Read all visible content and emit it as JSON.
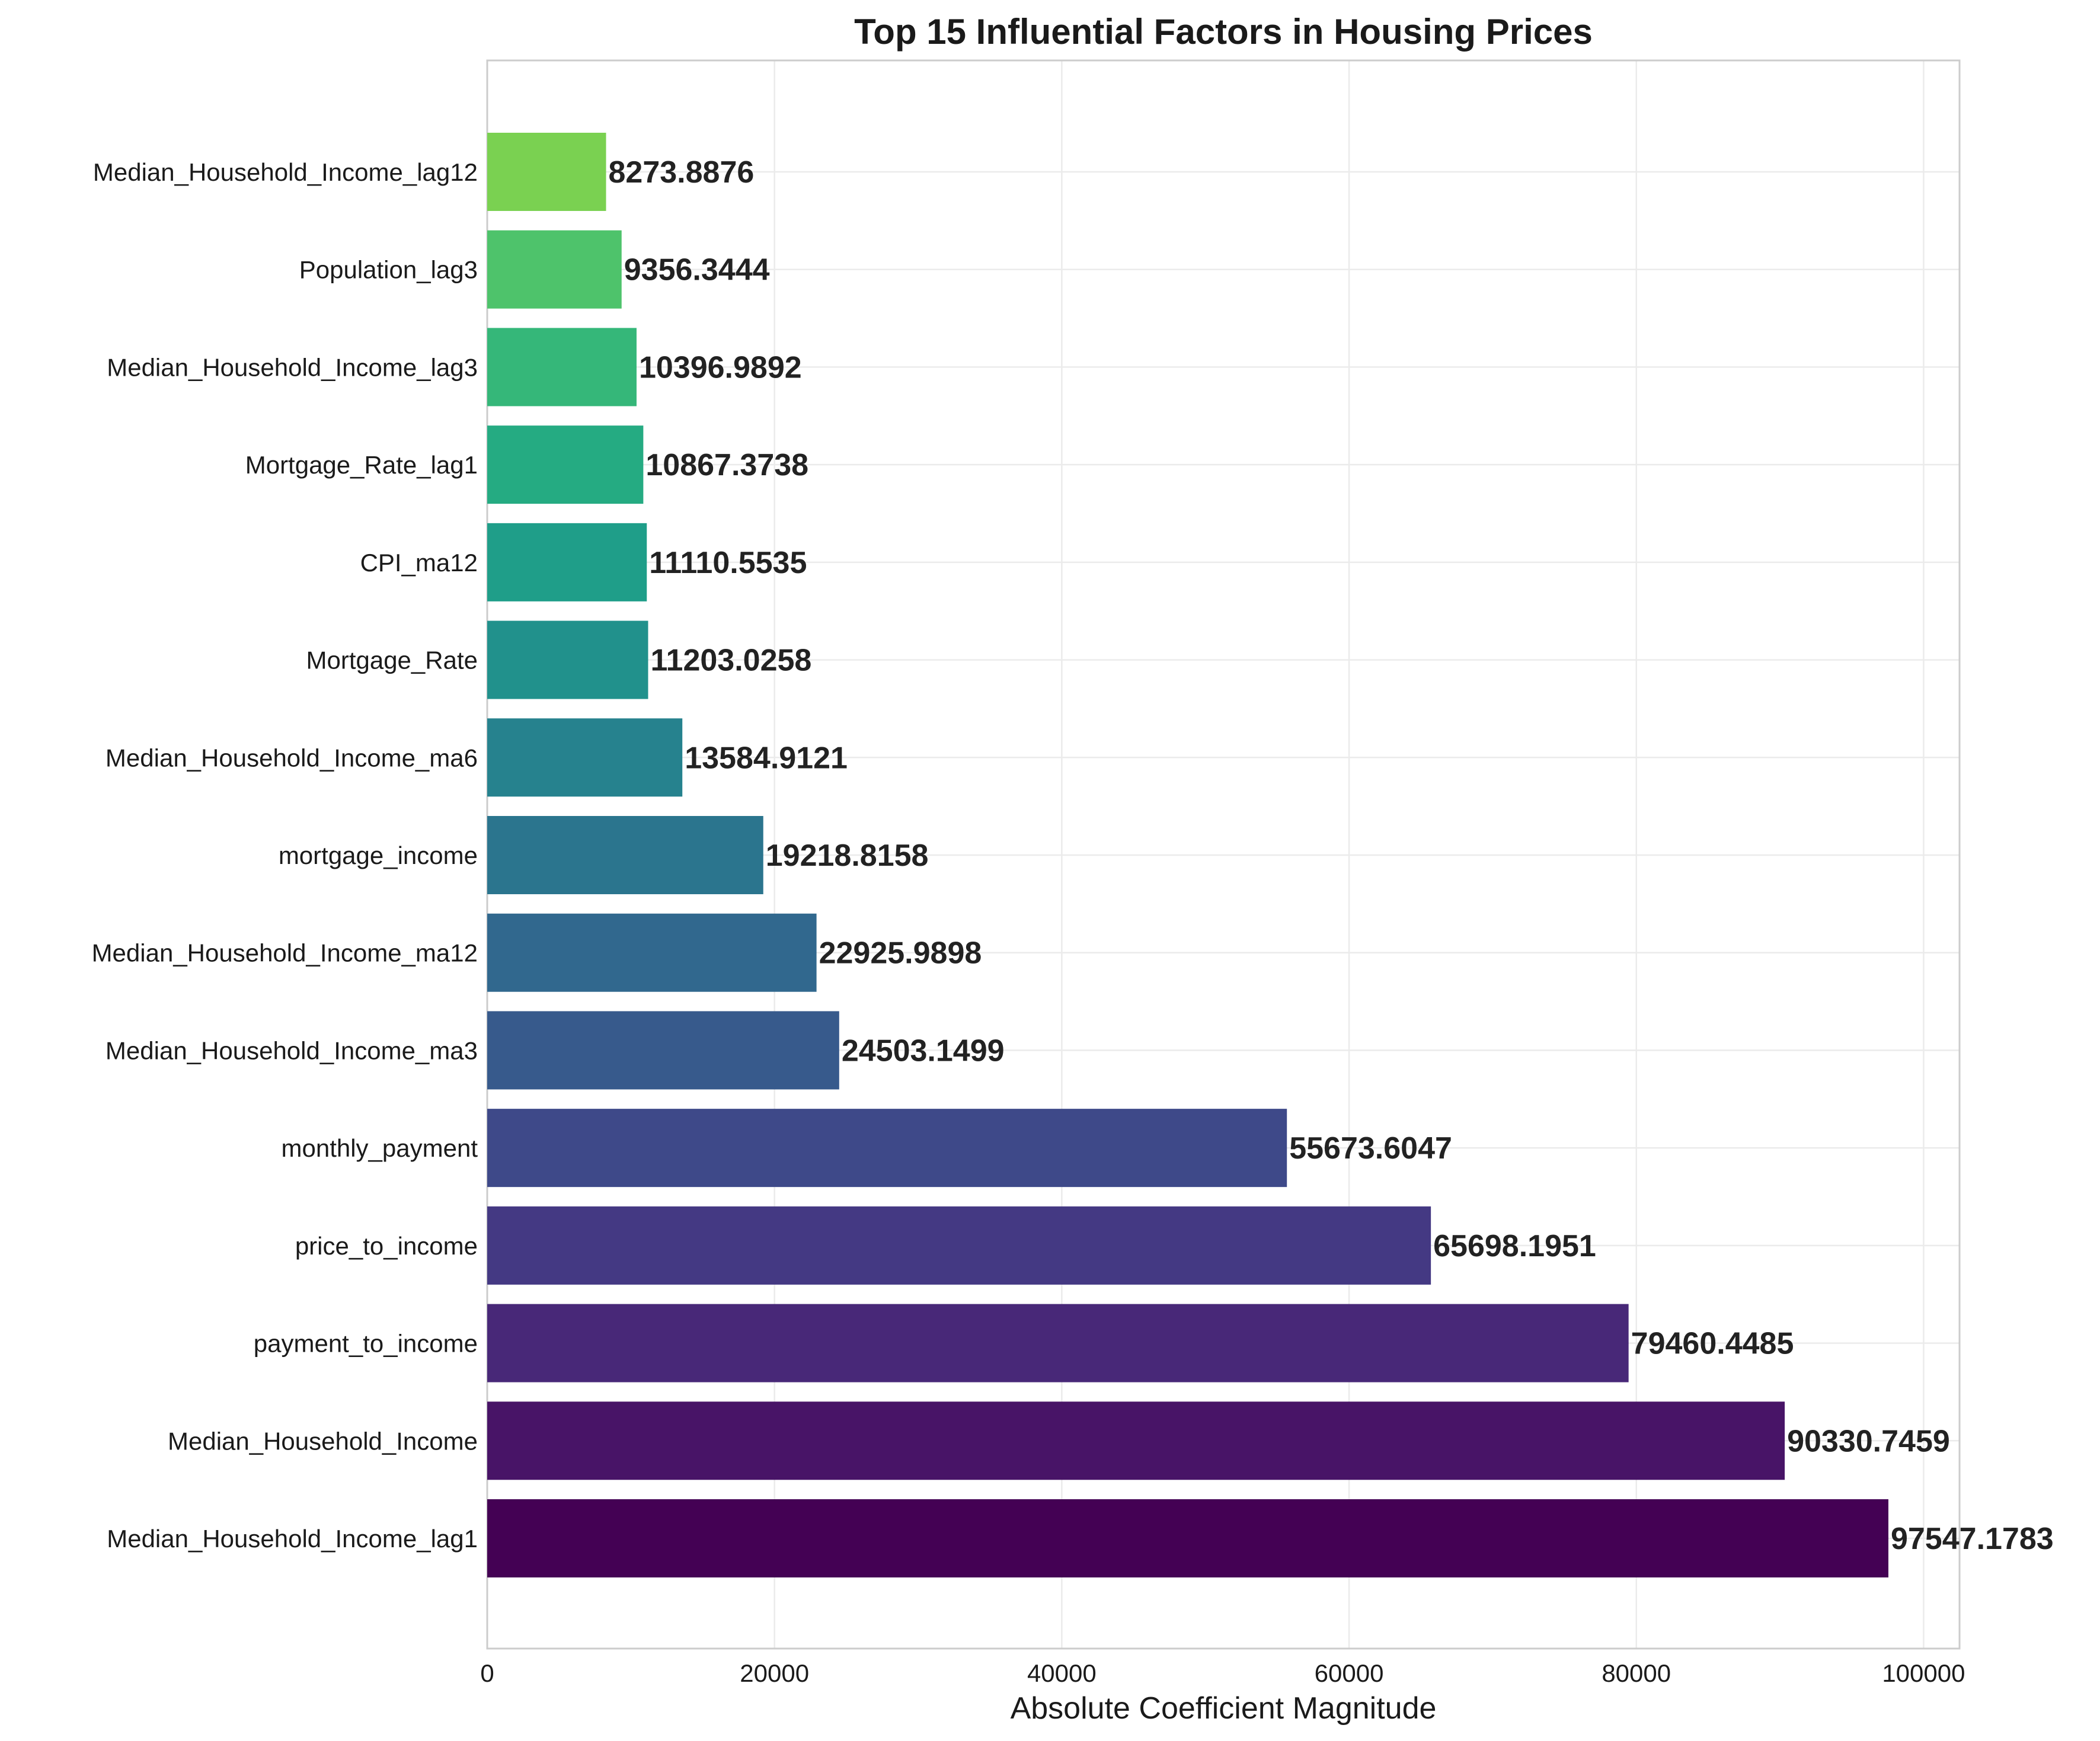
{
  "chart_data": {
    "type": "bar",
    "orientation": "horizontal",
    "title": "Top 15 Influential Factors in Housing Prices",
    "xlabel": "Absolute Coefficient Magnitude",
    "ylabel": "",
    "xlim": [
      0,
      102500
    ],
    "xticks": [
      0,
      20000,
      40000,
      60000,
      80000,
      100000
    ],
    "xtick_labels": [
      "0",
      "20000",
      "40000",
      "60000",
      "80000",
      "100000"
    ],
    "grid": true,
    "legend": "none",
    "colormap": "viridis",
    "categories": [
      "Median_Household_Income_lag1",
      "Median_Household_Income",
      "payment_to_income",
      "price_to_income",
      "monthly_payment",
      "Median_Household_Income_ma3",
      "Median_Household_Income_ma12",
      "mortgage_income",
      "Median_Household_Income_ma6",
      "Mortgage_Rate",
      "CPI_ma12",
      "Mortgage_Rate_lag1",
      "Median_Household_Income_lag3",
      "Population_lag3",
      "Median_Household_Income_lag12"
    ],
    "values": [
      97547.1783,
      90330.7459,
      79460.4485,
      65698.1951,
      55673.6047,
      24503.1499,
      22925.9898,
      19218.8158,
      13584.9121,
      11203.0258,
      11110.5535,
      10867.3738,
      10396.9892,
      9356.3444,
      8273.8876
    ],
    "value_labels": [
      "97547.1783",
      "90330.7459",
      "79460.4485",
      "65698.1951",
      "55673.6047",
      "24503.1499",
      "22925.9898",
      "19218.8158",
      "13584.9121",
      "11203.0258",
      "11110.5535",
      "10867.3738",
      "10396.9892",
      "9356.3444",
      "8273.8876"
    ],
    "colors": [
      "#440154",
      "#481467",
      "#482878",
      "#443983",
      "#3e4989",
      "#375a8c",
      "#31688e",
      "#2b758e",
      "#26828e",
      "#21918c",
      "#1f9e89",
      "#25ab82",
      "#35b779",
      "#4ec36b",
      "#7ad151"
    ]
  }
}
